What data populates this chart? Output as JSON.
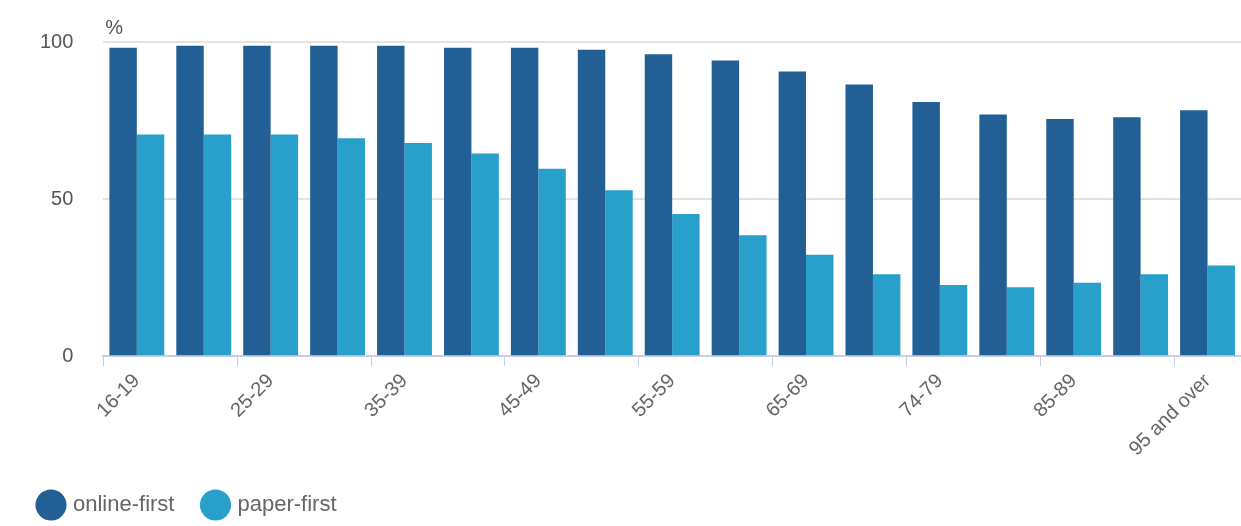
{
  "chart_data": {
    "type": "bar",
    "ylabel": "%",
    "categories": [
      "16-19",
      null,
      "25-29",
      null,
      "35-39",
      null,
      "45-49",
      null,
      "55-59",
      null,
      "65-69",
      null,
      "74-79",
      null,
      "85-89",
      null,
      "95 and over"
    ],
    "series": [
      {
        "name": "online-first",
        "color": "#215f94",
        "values": [
          98.2,
          98.8,
          98.8,
          98.8,
          98.8,
          98.2,
          98.2,
          97.5,
          96.1,
          94.1,
          90.6,
          86.5,
          80.9,
          76.9,
          75.5,
          76.1,
          78.3
        ]
      },
      {
        "name": "paper-first",
        "color": "#29a0cc",
        "values": [
          70.6,
          70.6,
          70.6,
          69.4,
          67.9,
          64.5,
          59.7,
          52.8,
          45.3,
          38.5,
          32.3,
          26.1,
          22.7,
          22.0,
          23.4,
          26.1,
          28.9
        ]
      }
    ],
    "ylim": [
      0,
      100
    ],
    "yticks": [
      0,
      50,
      100
    ],
    "grid": "y",
    "legend": "bottom left"
  }
}
